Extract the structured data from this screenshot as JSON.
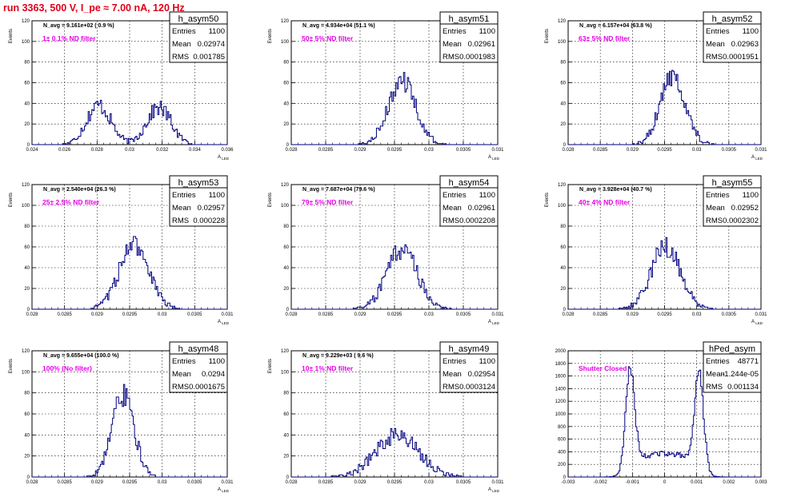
{
  "title": "run 3363,   500 V, I_pe ≈ 7.00 nA, 120 Hz",
  "colors": {
    "title": "#e0001a",
    "note": "#e600e6",
    "hist": "#000080",
    "grid": "#000000",
    "box": "#000000"
  },
  "chart_data": [
    {
      "type": "histogram",
      "name": "h_asym50",
      "navg": "N_avg = 9.161e+02 ( 0.9 %)",
      "filter": "1± 0.1% ND filter",
      "stats": {
        "Entries": "1100",
        "Mean": "0.02974",
        "RMS": "0.001785"
      },
      "ylabel": "Events",
      "xlabel": "A_LED",
      "xlim": [
        0.024,
        0.036
      ],
      "ylim": [
        0,
        120
      ],
      "xticks": [
        0.024,
        0.026,
        0.028,
        0.03,
        0.032,
        0.034,
        0.036
      ],
      "xticklabels": [
        "0.024",
        "0.026",
        "0.028",
        "0.03",
        "0.032",
        "0.034",
        "0.036"
      ],
      "yticks": [
        0,
        20,
        40,
        60,
        80,
        100,
        120
      ],
      "peaks": [
        [
          0.0281,
          0.00075,
          38
        ],
        [
          0.0318,
          0.00075,
          36
        ]
      ]
    },
    {
      "type": "histogram",
      "name": "h_asym51",
      "navg": "N_avg = 4.934e+04 (51.1 %)",
      "filter": "50± 5% ND filter",
      "stats": {
        "Entries": "1100",
        "Mean": "0.02961",
        "RMS": "0.0001983"
      },
      "ylabel": "Events",
      "xlabel": "A_LED",
      "xlim": [
        0.028,
        0.031
      ],
      "ylim": [
        0,
        120
      ],
      "xticks": [
        0.028,
        0.0285,
        0.029,
        0.0295,
        0.03,
        0.0305,
        0.031
      ],
      "xticklabels": [
        "0.028",
        "0.0285",
        "0.029",
        "0.0295",
        "0.03",
        "0.0305",
        "0.031"
      ],
      "yticks": [
        0,
        20,
        40,
        60,
        80,
        100,
        120
      ],
      "peaks": [
        [
          0.02961,
          0.000198,
          62
        ]
      ]
    },
    {
      "type": "histogram",
      "name": "h_asym52",
      "navg": "N_avg = 6.157e+04 (63.8 %)",
      "filter": "63± 5% ND filter",
      "stats": {
        "Entries": "1100",
        "Mean": "0.02963",
        "RMS": "0.0001951"
      },
      "ylabel": "Events",
      "xlabel": "A_LED",
      "xlim": [
        0.028,
        0.031
      ],
      "ylim": [
        0,
        120
      ],
      "xticks": [
        0.028,
        0.0285,
        0.029,
        0.0295,
        0.03,
        0.0305,
        0.031
      ],
      "xticklabels": [
        "0.028",
        "0.0285",
        "0.029",
        "0.0295",
        "0.03",
        "0.0305",
        "0.031"
      ],
      "yticks": [
        0,
        20,
        40,
        60,
        80,
        100,
        120
      ],
      "peaks": [
        [
          0.02963,
          0.000195,
          66
        ]
      ]
    },
    {
      "type": "histogram",
      "name": "h_asym53",
      "navg": "N_avg = 2.540e+04 (26.3 %)",
      "filter": "25± 2.5% ND filter",
      "stats": {
        "Entries": "1100",
        "Mean": "0.02957",
        "RMS": "0.000228"
      },
      "ylabel": "Events",
      "xlabel": "A_LED",
      "xlim": [
        0.028,
        0.031
      ],
      "ylim": [
        0,
        120
      ],
      "xticks": [
        0.028,
        0.0285,
        0.029,
        0.0295,
        0.03,
        0.0305,
        0.031
      ],
      "xticklabels": [
        "0.028",
        "0.0285",
        "0.029",
        "0.0295",
        "0.03",
        "0.0305",
        "0.031"
      ],
      "yticks": [
        0,
        20,
        40,
        60,
        80,
        100,
        120
      ],
      "peaks": [
        [
          0.02957,
          0.000228,
          62
        ]
      ]
    },
    {
      "type": "histogram",
      "name": "h_asym54",
      "navg": "N_avg = 7.687e+04 (79.6 %)",
      "filter": "79± 5% ND filter",
      "stats": {
        "Entries": "1100",
        "Mean": "0.02961",
        "RMS": "0.0002208"
      },
      "ylabel": "Events",
      "xlabel": "A_LED",
      "xlim": [
        0.028,
        0.031
      ],
      "ylim": [
        0,
        120
      ],
      "xticks": [
        0.028,
        0.0285,
        0.029,
        0.0295,
        0.03,
        0.0305,
        0.031
      ],
      "xticklabels": [
        "0.028",
        "0.0285",
        "0.029",
        "0.0295",
        "0.03",
        "0.0305",
        "0.031"
      ],
      "yticks": [
        0,
        20,
        40,
        60,
        80,
        100,
        120
      ],
      "peaks": [
        [
          0.02961,
          0.000221,
          58
        ]
      ]
    },
    {
      "type": "histogram",
      "name": "h_asym55",
      "navg": "N_avg = 3.928e+04 (40.7 %)",
      "filter": "40± 4% ND filter",
      "stats": {
        "Entries": "1100",
        "Mean": "0.02952",
        "RMS": "0.0002302"
      },
      "ylabel": "Events",
      "xlabel": "A_LED",
      "xlim": [
        0.028,
        0.031
      ],
      "ylim": [
        0,
        120
      ],
      "xticks": [
        0.028,
        0.0285,
        0.029,
        0.0295,
        0.03,
        0.0305,
        0.031
      ],
      "xticklabels": [
        "0.028",
        "0.0285",
        "0.029",
        "0.0295",
        "0.03",
        "0.0305",
        "0.031"
      ],
      "yticks": [
        0,
        20,
        40,
        60,
        80,
        100,
        120
      ],
      "peaks": [
        [
          0.02952,
          0.00023,
          60
        ]
      ]
    },
    {
      "type": "histogram",
      "name": "h_asym48",
      "navg": "N_avg = 9.655e+04 (100.0 %)",
      "filter": "100% (No filter)",
      "stats": {
        "Entries": "1100",
        "Mean": "0.0294",
        "RMS": "0.0001675"
      },
      "ylabel": "Events",
      "xlabel": "A_LED",
      "xlim": [
        0.028,
        0.031
      ],
      "ylim": [
        0,
        120
      ],
      "xticks": [
        0.028,
        0.0285,
        0.029,
        0.0295,
        0.03,
        0.0305,
        0.031
      ],
      "xticklabels": [
        "0.028",
        "0.0285",
        "0.029",
        "0.0295",
        "0.03",
        "0.0305",
        "0.031"
      ],
      "yticks": [
        0,
        20,
        40,
        60,
        80,
        100,
        120
      ],
      "peaks": [
        [
          0.0294,
          0.000168,
          78
        ]
      ]
    },
    {
      "type": "histogram",
      "name": "h_asym49",
      "navg": "N_avg = 9.229e+03 ( 9.6 %)",
      "filter": "10± 1% ND filter",
      "stats": {
        "Entries": "1100",
        "Mean": "0.02954",
        "RMS": "0.0003124"
      },
      "ylabel": "Events",
      "xlabel": "A_LED",
      "xlim": [
        0.028,
        0.031
      ],
      "ylim": [
        0,
        120
      ],
      "xticks": [
        0.028,
        0.0285,
        0.029,
        0.0295,
        0.03,
        0.0305,
        0.031
      ],
      "xticklabels": [
        "0.028",
        "0.0285",
        "0.029",
        "0.0295",
        "0.03",
        "0.0305",
        "0.031"
      ],
      "yticks": [
        0,
        20,
        40,
        60,
        80,
        100,
        120
      ],
      "peaks": [
        [
          0.02954,
          0.00031,
          40
        ]
      ]
    },
    {
      "type": "histogram",
      "name": "hPed_asym",
      "navg": "",
      "filter": "Shutter Closed",
      "stats": {
        "Entries": "48771",
        "Mean": "-1.244e-05",
        "RMS": "0.001134"
      },
      "ylabel": "",
      "xlabel": "",
      "xlim": [
        -0.003,
        0.003
      ],
      "ylim": [
        0,
        2000
      ],
      "xticks": [
        -0.003,
        -0.002,
        -0.001,
        0,
        0.001,
        0.002,
        0.003
      ],
      "xticklabels": [
        "-0.003",
        "-0.002",
        "-0.001",
        "0",
        "0.001",
        "0.002",
        "0.003"
      ],
      "yticks": [
        0,
        200,
        400,
        600,
        800,
        1000,
        1200,
        1400,
        1600,
        1800,
        2000
      ],
      "peaks": [
        [
          -0.00108,
          0.00014,
          1480
        ],
        [
          0.00108,
          0.00014,
          1420
        ]
      ],
      "baseline": 370
    }
  ]
}
